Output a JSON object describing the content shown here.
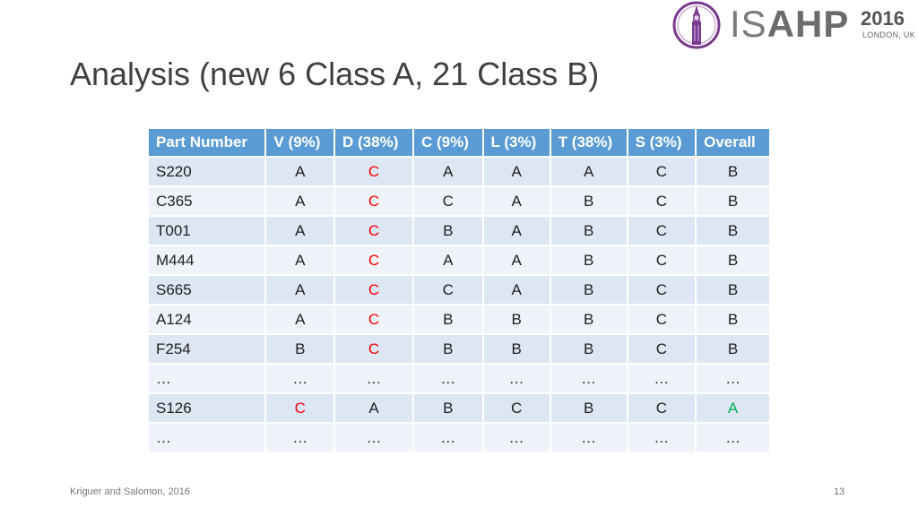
{
  "logo": {
    "prefix": "IS",
    "name": "AHP",
    "year": "2016",
    "place": "LONDON, UK",
    "emblem_icon": "big-ben-emblem-icon",
    "colors": {
      "ring": "#7a3b8f",
      "text": "#6b6b6b"
    }
  },
  "title": "Analysis (new 6 Class A, 21 Class B)",
  "table": {
    "headers": [
      "Part Number",
      "V (9%)",
      "D (38%)",
      "C (9%)",
      "L (3%)",
      "T (38%)",
      "S (3%)",
      "Overall"
    ],
    "rows": [
      [
        "S220",
        "A",
        "C",
        "A",
        "A",
        "A",
        "C",
        "B"
      ],
      [
        "C365",
        "A",
        "C",
        "C",
        "A",
        "B",
        "C",
        "B"
      ],
      [
        "T001",
        "A",
        "C",
        "B",
        "A",
        "B",
        "C",
        "B"
      ],
      [
        "M444",
        "A",
        "C",
        "A",
        "A",
        "B",
        "C",
        "B"
      ],
      [
        "S665",
        "A",
        "C",
        "C",
        "A",
        "B",
        "C",
        "B"
      ],
      [
        "A124",
        "A",
        "C",
        "B",
        "B",
        "B",
        "C",
        "B"
      ],
      [
        "F254",
        "B",
        "C",
        "B",
        "B",
        "B",
        "C",
        "B"
      ],
      [
        "…",
        "…",
        "…",
        "…",
        "…",
        "…",
        "…",
        "…"
      ],
      [
        "S126",
        "C",
        "A",
        "B",
        "C",
        "B",
        "C",
        "A"
      ],
      [
        "…",
        "…",
        "…",
        "…",
        "…",
        "…",
        "…",
        "…"
      ]
    ],
    "highlights": [
      {
        "row": 0,
        "col": 2,
        "color": "red"
      },
      {
        "row": 1,
        "col": 2,
        "color": "red"
      },
      {
        "row": 2,
        "col": 2,
        "color": "red"
      },
      {
        "row": 3,
        "col": 2,
        "color": "red"
      },
      {
        "row": 4,
        "col": 2,
        "color": "red"
      },
      {
        "row": 5,
        "col": 2,
        "color": "red"
      },
      {
        "row": 6,
        "col": 2,
        "color": "red"
      },
      {
        "row": 8,
        "col": 1,
        "color": "red"
      },
      {
        "row": 8,
        "col": 7,
        "color": "green"
      }
    ],
    "colors": {
      "header": "#5b9bd5",
      "row_dark": "#dde6f3",
      "row_light": "#eef2f9",
      "red": "#ff0000",
      "green": "#00b050"
    }
  },
  "footer": {
    "source": "Kriguer and Salomon, 2016",
    "page_number": "13"
  }
}
